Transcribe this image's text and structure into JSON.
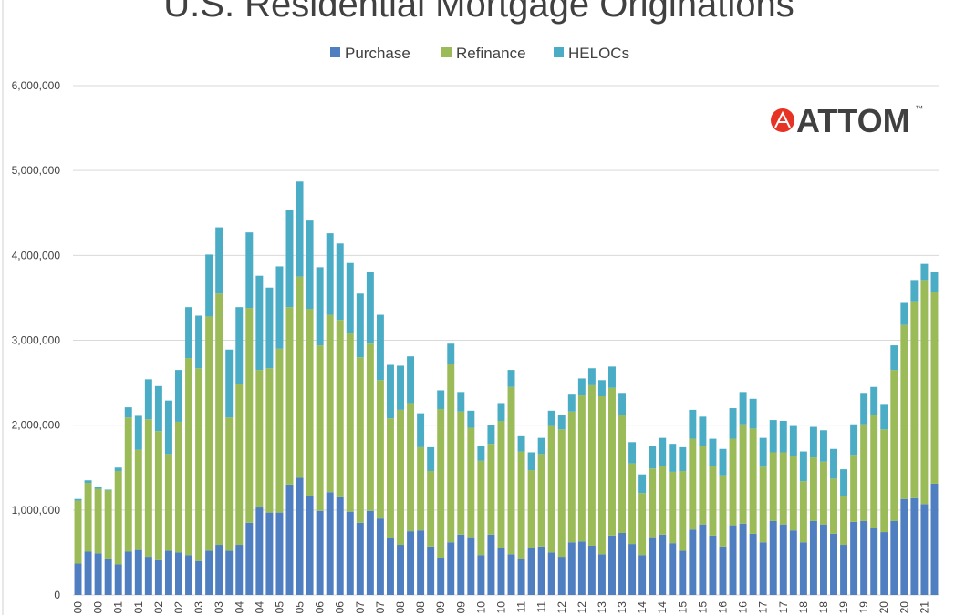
{
  "chart_data": {
    "type": "stacked_bar",
    "title": "U.S. Residential Mortgage Originations",
    "logo": "ATTOM",
    "logo_mark": "™",
    "categories": [
      "00",
      null,
      "00",
      null,
      "01",
      null,
      "01",
      null,
      "02",
      null,
      "02",
      null,
      "03",
      null,
      "03",
      null,
      "04",
      null,
      "04",
      null,
      "05",
      null,
      "05",
      null,
      "06",
      null,
      "06",
      null,
      "07",
      null,
      "07",
      null,
      "08",
      null,
      "08",
      null,
      "09",
      null,
      "09",
      null,
      "10",
      null,
      "10",
      null,
      "11",
      null,
      "11",
      null,
      "12",
      null,
      "12",
      null,
      "13",
      null,
      "13",
      null,
      "14",
      null,
      "14",
      null,
      "15",
      null,
      "15",
      null,
      "16",
      null,
      "16",
      null,
      "17",
      null,
      "17",
      null,
      "18",
      null,
      "18",
      null,
      "19",
      null,
      "19",
      null,
      "20",
      null,
      "20",
      null,
      "21",
      null
    ],
    "series": [
      {
        "name": "Purchase",
        "color": "#4f7fc0",
        "values": [
          370000,
          510000,
          490000,
          430000,
          360000,
          510000,
          530000,
          450000,
          410000,
          520000,
          500000,
          470000,
          400000,
          520000,
          590000,
          520000,
          590000,
          850000,
          1030000,
          970000,
          970000,
          1300000,
          1380000,
          1170000,
          990000,
          1210000,
          1160000,
          980000,
          850000,
          990000,
          900000,
          670000,
          590000,
          750000,
          760000,
          570000,
          440000,
          620000,
          710000,
          680000,
          470000,
          710000,
          550000,
          480000,
          420000,
          550000,
          570000,
          500000,
          450000,
          620000,
          630000,
          580000,
          480000,
          700000,
          730000,
          600000,
          470000,
          680000,
          710000,
          610000,
          520000,
          770000,
          830000,
          700000,
          570000,
          820000,
          840000,
          720000,
          620000,
          870000,
          830000,
          760000,
          620000,
          870000,
          830000,
          720000,
          590000,
          860000,
          870000,
          790000,
          740000,
          870000,
          1130000,
          1140000,
          1070000,
          1310000
        ]
      },
      {
        "name": "Refinance",
        "color": "#9bbb59",
        "values": [
          740000,
          810000,
          760000,
          800000,
          1100000,
          1580000,
          1180000,
          1620000,
          1520000,
          1140000,
          1540000,
          2320000,
          2270000,
          2760000,
          2960000,
          1570000,
          1900000,
          2530000,
          1620000,
          1700000,
          1930000,
          2090000,
          2370000,
          2200000,
          1950000,
          2090000,
          2080000,
          2100000,
          1950000,
          1970000,
          1630000,
          1410000,
          1590000,
          1510000,
          980000,
          890000,
          1750000,
          2100000,
          1450000,
          1290000,
          1110000,
          1070000,
          1500000,
          1970000,
          1270000,
          920000,
          1090000,
          1490000,
          1500000,
          1540000,
          1720000,
          1890000,
          1860000,
          1740000,
          1390000,
          950000,
          730000,
          810000,
          810000,
          840000,
          940000,
          1070000,
          920000,
          820000,
          840000,
          1020000,
          1170000,
          1240000,
          890000,
          810000,
          850000,
          880000,
          720000,
          750000,
          740000,
          650000,
          580000,
          790000,
          1140000,
          1330000,
          1210000,
          1780000,
          2050000,
          2320000,
          2640000,
          2260000
        ]
      },
      {
        "name": "HELOCs",
        "color": "#4bacc6",
        "values": [
          20000,
          30000,
          20000,
          10000,
          40000,
          120000,
          400000,
          470000,
          530000,
          630000,
          610000,
          600000,
          620000,
          730000,
          780000,
          800000,
          900000,
          890000,
          1110000,
          950000,
          970000,
          1140000,
          1120000,
          1040000,
          920000,
          960000,
          900000,
          830000,
          750000,
          850000,
          770000,
          630000,
          520000,
          550000,
          400000,
          280000,
          220000,
          240000,
          230000,
          200000,
          170000,
          220000,
          210000,
          200000,
          190000,
          210000,
          190000,
          180000,
          170000,
          210000,
          200000,
          200000,
          190000,
          250000,
          260000,
          250000,
          220000,
          270000,
          330000,
          330000,
          280000,
          340000,
          350000,
          320000,
          310000,
          360000,
          380000,
          350000,
          340000,
          380000,
          370000,
          350000,
          350000,
          360000,
          370000,
          350000,
          310000,
          360000,
          370000,
          330000,
          300000,
          290000,
          260000,
          250000,
          190000,
          230000
        ]
      }
    ],
    "ylim": [
      0,
      6000000
    ],
    "yticks": [
      0,
      {
        "value": 1000000,
        "label": "1,000,000"
      },
      {
        "value": 2000000,
        "label": "2,000,000"
      },
      {
        "value": 3000000,
        "label": "3,000,000"
      },
      {
        "value": 4000000,
        "label": "4,000,000"
      },
      {
        "value": 5000000,
        "label": "5,000,000"
      },
      {
        "value": 6000000,
        "label": "6,000,000"
      }
    ],
    "grid": true,
    "legend": "top"
  }
}
